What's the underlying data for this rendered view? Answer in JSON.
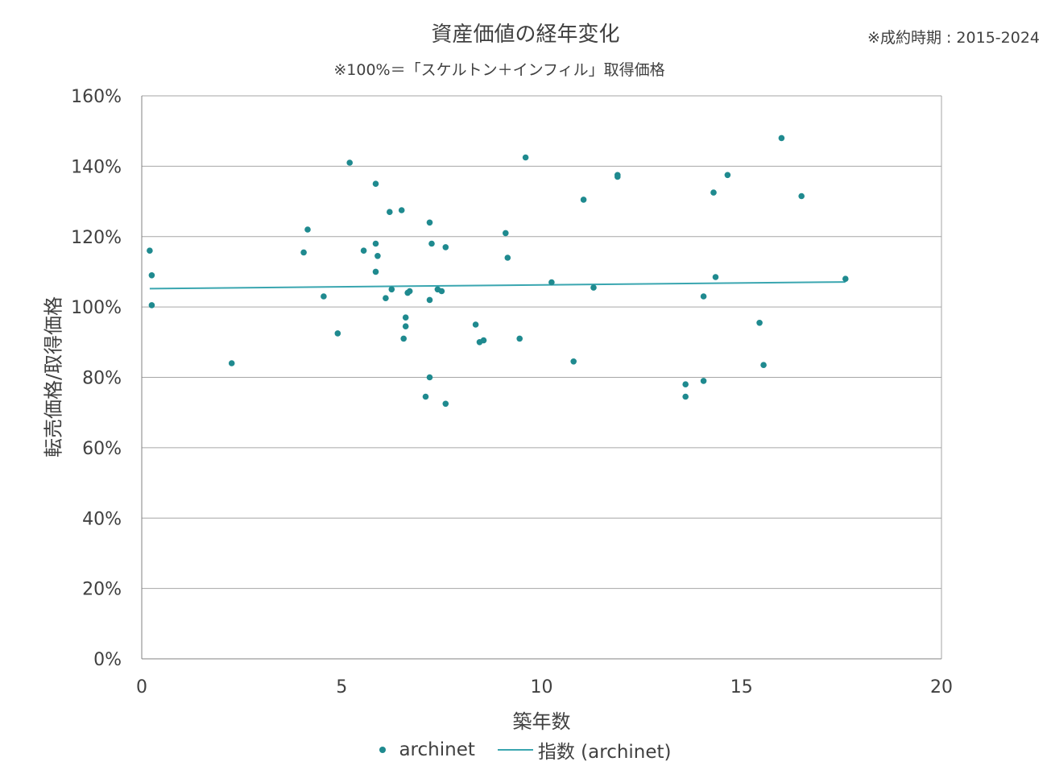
{
  "chart_data": {
    "type": "scatter",
    "title": "資産価値の経年変化",
    "subtitle": "※100%＝「スケルトン＋インフィル」取得価格",
    "note": "※成約時期 : 2015-2024",
    "xlabel": "築年数",
    "ylabel": "転売価格/取得価格",
    "xlim": [
      0,
      20
    ],
    "ylim": [
      0,
      160
    ],
    "xticks": [
      "0",
      "5",
      "10",
      "15",
      "20"
    ],
    "yticks": [
      "0%",
      "20%",
      "40%",
      "60%",
      "80%",
      "100%",
      "120%",
      "140%",
      "160%"
    ],
    "grid": "horizontal",
    "legend_position": "bottom",
    "colors": {
      "points": "#1f8a8f",
      "trend": "#3aa6b0",
      "grid": "#a6a6a6",
      "axis": "#808080"
    },
    "series": [
      {
        "name": "archinet",
        "kind": "scatter",
        "points": [
          [
            0.2,
            116
          ],
          [
            0.25,
            109
          ],
          [
            0.25,
            100.5
          ],
          [
            2.25,
            84
          ],
          [
            4.05,
            115.5
          ],
          [
            4.15,
            122
          ],
          [
            4.55,
            103
          ],
          [
            4.9,
            92.5
          ],
          [
            5.2,
            141
          ],
          [
            5.55,
            116
          ],
          [
            5.85,
            135
          ],
          [
            5.85,
            118
          ],
          [
            5.9,
            114.5
          ],
          [
            5.85,
            110
          ],
          [
            6.1,
            102.5
          ],
          [
            6.2,
            127
          ],
          [
            6.25,
            105
          ],
          [
            6.5,
            127.5
          ],
          [
            6.55,
            91
          ],
          [
            6.6,
            97
          ],
          [
            6.6,
            94.5
          ],
          [
            6.65,
            104
          ],
          [
            6.7,
            104.5
          ],
          [
            7.1,
            74.5
          ],
          [
            7.2,
            124
          ],
          [
            7.2,
            102
          ],
          [
            7.2,
            80
          ],
          [
            7.25,
            118
          ],
          [
            7.4,
            105
          ],
          [
            7.5,
            104.5
          ],
          [
            7.6,
            117
          ],
          [
            7.6,
            72.5
          ],
          [
            8.35,
            95
          ],
          [
            8.45,
            90
          ],
          [
            8.55,
            90.5
          ],
          [
            9.1,
            121
          ],
          [
            9.15,
            114
          ],
          [
            9.45,
            91
          ],
          [
            9.6,
            142.5
          ],
          [
            10.25,
            107
          ],
          [
            10.8,
            84.5
          ],
          [
            11.05,
            130.5
          ],
          [
            11.3,
            105.5
          ],
          [
            11.9,
            137.5
          ],
          [
            11.9,
            137
          ],
          [
            13.6,
            78
          ],
          [
            13.6,
            74.5
          ],
          [
            14.05,
            103
          ],
          [
            14.05,
            79
          ],
          [
            14.3,
            132.5
          ],
          [
            14.35,
            108.5
          ],
          [
            14.65,
            137.5
          ],
          [
            15.45,
            95.5
          ],
          [
            15.55,
            83.5
          ],
          [
            16.0,
            148
          ],
          [
            16.5,
            131.5
          ],
          [
            17.6,
            108
          ]
        ]
      },
      {
        "name": "指数 (archinet)",
        "kind": "line",
        "points": [
          [
            0.2,
            105.2
          ],
          [
            17.6,
            107.1
          ]
        ]
      }
    ]
  }
}
